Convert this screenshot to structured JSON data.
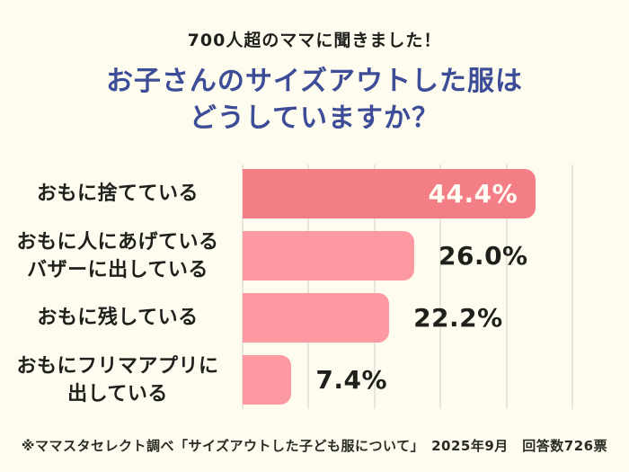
{
  "header": {
    "subtitle": "700人超のママに聞きました！",
    "title_line1": "お子さんのサイズアウトした服は",
    "title_line2": "どうしていますか？"
  },
  "chart_data": {
    "type": "bar",
    "orientation": "horizontal",
    "title": "お子さんのサイズアウトした服はどうしていますか？",
    "categories": [
      [
        "おもに捨てている"
      ],
      [
        "おもに人にあげている",
        "バザーに出している"
      ],
      [
        "おもに残している"
      ],
      [
        "おもにフリマアプリに",
        "出している"
      ]
    ],
    "values": [
      44.4,
      26.0,
      22.2,
      7.4
    ],
    "value_labels": [
      "44.4%",
      "26.0%",
      "22.2%",
      "7.4%"
    ],
    "value_label_inside": [
      true,
      false,
      false,
      false
    ],
    "bar_colors": [
      "#f37e86",
      "#fd9aa1",
      "#fd9aa1",
      "#fd9aa1"
    ],
    "xlim": [
      0,
      55
    ],
    "gridlines_percent": [
      0,
      10,
      20,
      30,
      40,
      50
    ],
    "grid": true,
    "legend": false,
    "unit": "%"
  },
  "footer": {
    "note": "※ママスタセレクト調べ「サイズアウトした子ども服について」　2025年9月　回答数726票"
  },
  "colors": {
    "background": "#fdfcee",
    "title": "#3d4c96",
    "text": "#1f1f1c",
    "bar_primary": "#f37e86",
    "bar_secondary": "#fd9aa1",
    "gridline": "#e8e6da",
    "value_inside_text": "#fffdf4"
  }
}
